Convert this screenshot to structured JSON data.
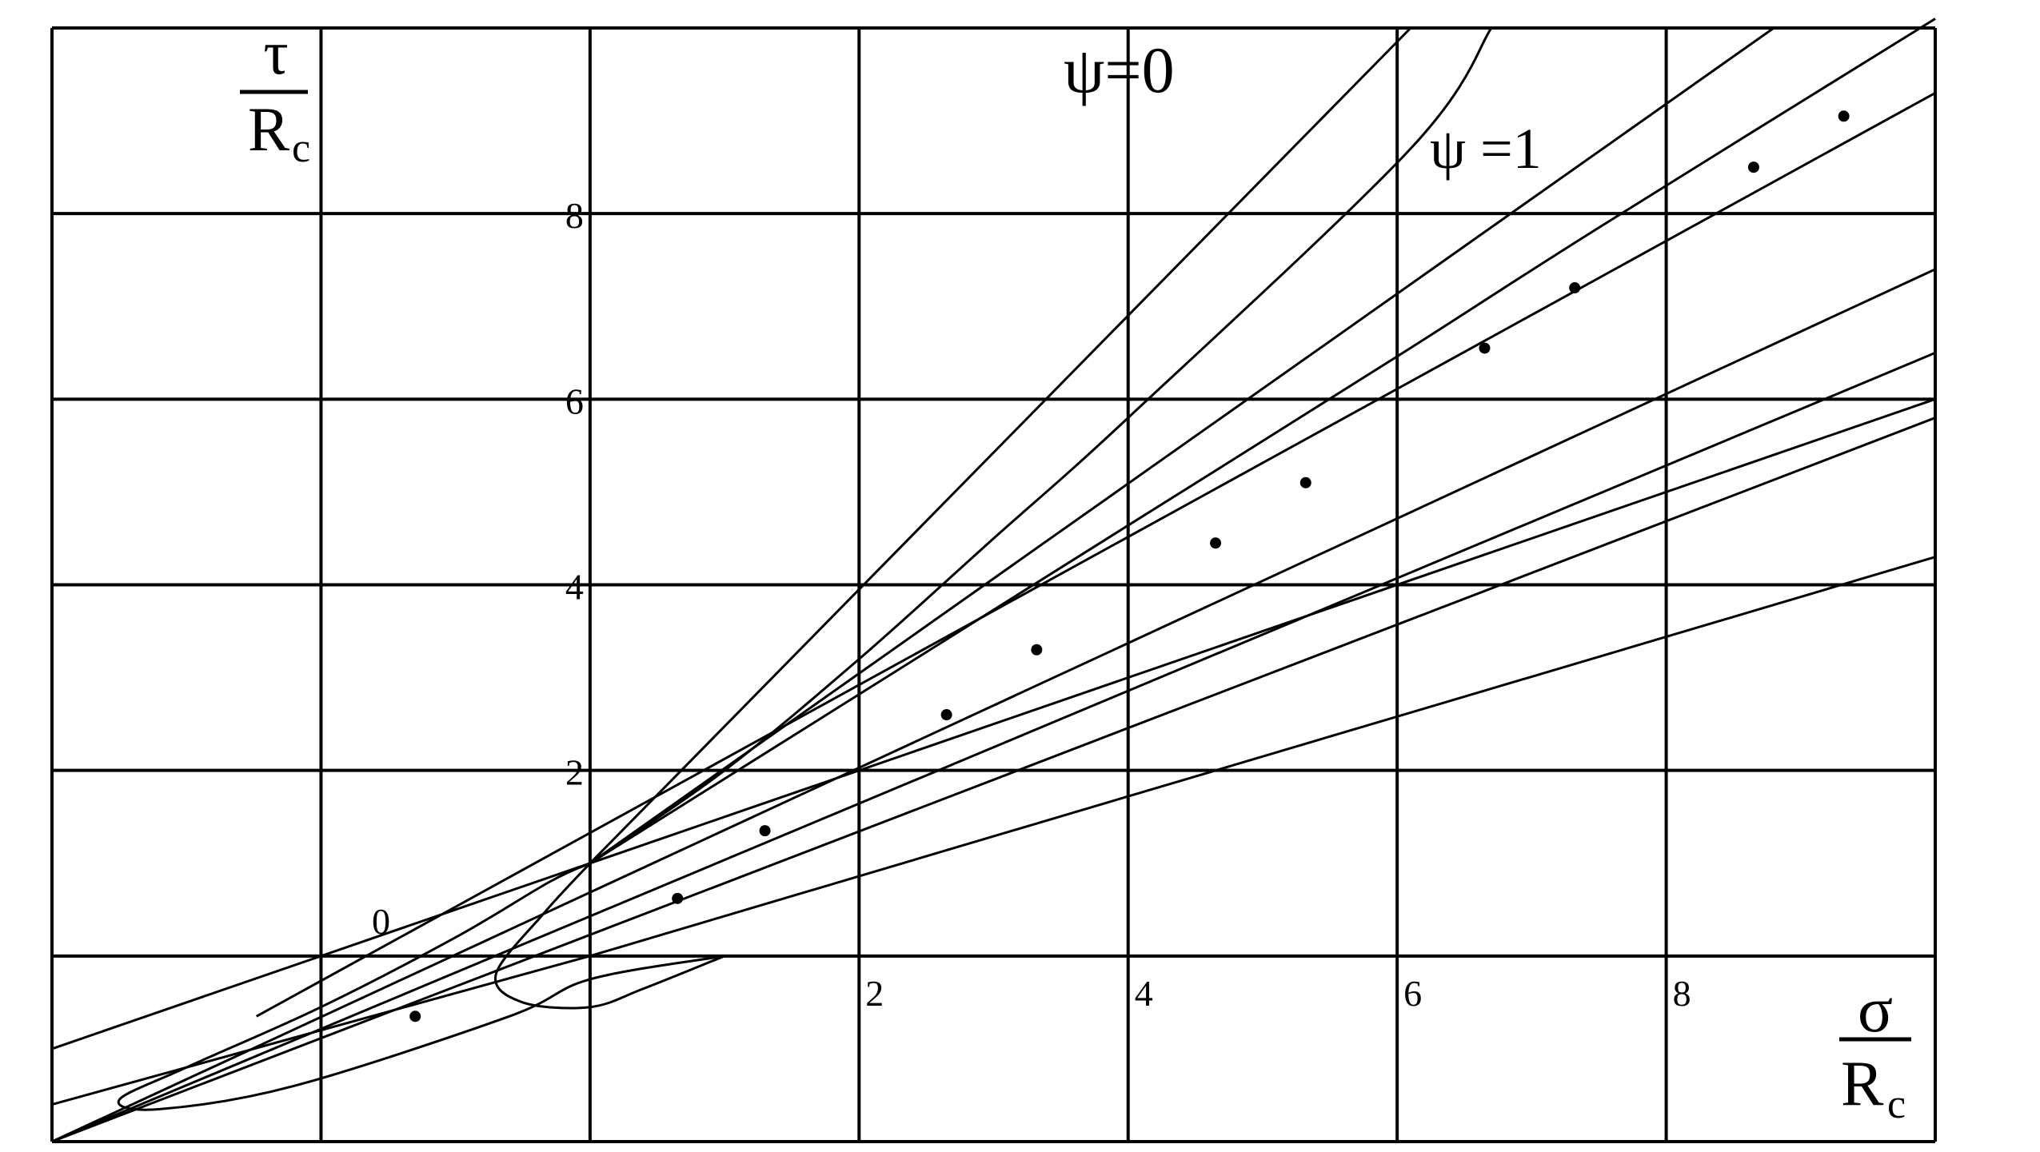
{
  "chart_data": {
    "type": "line",
    "x_domain": [
      -4,
      10
    ],
    "y_domain": [
      -2,
      10
    ],
    "grid": true,
    "grid_x": [
      -4,
      -2,
      0,
      2,
      4,
      6,
      8,
      10
    ],
    "grid_y": [
      -2,
      0,
      2,
      4,
      6,
      8,
      10
    ],
    "x_ticks": [
      {
        "value": 2,
        "label": "2"
      },
      {
        "value": 4,
        "label": "4"
      },
      {
        "value": 6,
        "label": "6"
      },
      {
        "value": 8,
        "label": "8"
      }
    ],
    "y_ticks": [
      {
        "value": 2,
        "label": "2"
      },
      {
        "value": 4,
        "label": "4"
      },
      {
        "value": 6,
        "label": "6"
      },
      {
        "value": 8,
        "label": "8"
      }
    ],
    "origin_label": "0",
    "xlabel": {
      "num": "σ",
      "den": "R",
      "sub": "c"
    },
    "ylabel": {
      "num": "τ",
      "den": "R",
      "sub": "c"
    },
    "series_labels": [
      "ψ=0",
      "ψ =1"
    ],
    "lines": [
      {
        "points": [
          [
            0,
            1
          ],
          [
            6.1,
            10
          ]
        ]
      },
      {
        "points": [
          [
            0,
            1
          ],
          [
            8.8,
            10
          ]
        ]
      },
      {
        "points": [
          [
            -4,
            -1.0
          ],
          [
            0,
            1
          ],
          [
            10,
            6.0
          ]
        ]
      },
      {
        "points": [
          [
            -2.48,
            -0.65
          ],
          [
            10,
            9.3
          ]
        ]
      },
      {
        "points": [
          [
            -4,
            -2.0
          ],
          [
            10,
            6.5
          ]
        ]
      },
      {
        "points": [
          [
            -4,
            -2.0
          ],
          [
            10,
            7.4
          ]
        ]
      },
      {
        "points": [
          [
            -4,
            -2.0
          ],
          [
            10,
            5.8
          ]
        ]
      },
      {
        "points": [
          [
            -4,
            -1.6
          ],
          [
            0,
            0
          ],
          [
            10,
            4.3
          ]
        ]
      }
    ],
    "curves": [
      {
        "points": [
          [
            0,
            1
          ],
          [
            1,
            2
          ],
          [
            2,
            3.2
          ],
          [
            3,
            4.5
          ],
          [
            4,
            5.8
          ],
          [
            6.1,
            8.7
          ],
          [
            6.7,
            10
          ]
        ]
      },
      {
        "points": [
          [
            0,
            1
          ],
          [
            2,
            2.82
          ],
          [
            4,
            4.64
          ],
          [
            6,
            6.46
          ],
          [
            7.5,
            7.85
          ],
          [
            10,
            10.1
          ]
        ]
      },
      {
        "points": [
          [
            0,
            1
          ],
          [
            -0.35,
            0.45
          ],
          [
            -0.7,
            -0.2
          ],
          [
            -0.5,
            -0.5
          ],
          [
            0,
            -0.55
          ],
          [
            0.4,
            -0.35
          ],
          [
            1,
            0
          ]
        ]
      },
      {
        "points": [
          [
            0,
            1
          ],
          [
            -0.3,
            0.8
          ],
          [
            -1.0,
            0.2
          ],
          [
            -2.0,
            -0.55
          ],
          [
            -3.0,
            -1.2
          ],
          [
            -3.5,
            -1.55
          ],
          [
            -3.2,
            -1.65
          ],
          [
            -2.2,
            -1.4
          ],
          [
            -0.6,
            -0.65
          ],
          [
            0,
            -0.25
          ],
          [
            1,
            0
          ]
        ]
      }
    ],
    "markers": [
      {
        "x": -1.3,
        "y": -0.65
      },
      {
        "x": 0.65,
        "y": 0.62
      },
      {
        "x": 1.3,
        "y": 1.35
      },
      {
        "x": 2.65,
        "y": 2.6
      },
      {
        "x": 3.32,
        "y": 3.3
      },
      {
        "x": 4.65,
        "y": 4.45
      },
      {
        "x": 5.32,
        "y": 5.1
      },
      {
        "x": 6.65,
        "y": 6.55
      },
      {
        "x": 7.32,
        "y": 7.2
      },
      {
        "x": 8.65,
        "y": 8.5
      },
      {
        "x": 9.32,
        "y": 9.05
      }
    ]
  }
}
